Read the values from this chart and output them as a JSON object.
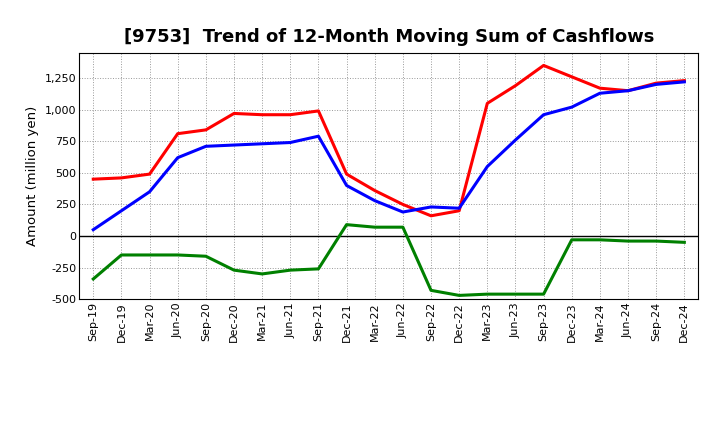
{
  "title": "[9753]  Trend of 12-Month Moving Sum of Cashflows",
  "ylabel": "Amount (million yen)",
  "x_labels": [
    "Sep-19",
    "Dec-19",
    "Mar-20",
    "Jun-20",
    "Sep-20",
    "Dec-20",
    "Mar-21",
    "Jun-21",
    "Sep-21",
    "Dec-21",
    "Mar-22",
    "Jun-22",
    "Sep-22",
    "Dec-22",
    "Mar-23",
    "Jun-23",
    "Sep-23",
    "Dec-23",
    "Mar-24",
    "Jun-24",
    "Sep-24",
    "Dec-24"
  ],
  "operating": [
    450,
    460,
    490,
    810,
    840,
    970,
    960,
    960,
    990,
    490,
    360,
    250,
    160,
    200,
    1050,
    1190,
    1350,
    1260,
    1170,
    1150,
    1210,
    1230
  ],
  "investing": [
    -340,
    -150,
    -150,
    -150,
    -160,
    -270,
    -300,
    -270,
    -260,
    90,
    70,
    70,
    -430,
    -470,
    -460,
    -460,
    -460,
    -30,
    -30,
    -40,
    -40,
    -50
  ],
  "free": [
    50,
    200,
    350,
    620,
    710,
    720,
    730,
    740,
    790,
    400,
    280,
    190,
    230,
    220,
    550,
    760,
    960,
    1020,
    1130,
    1150,
    1200,
    1220
  ],
  "operating_color": "#FF0000",
  "investing_color": "#008000",
  "free_color": "#0000FF",
  "ylim": [
    -500,
    1450
  ],
  "yticks": [
    -500,
    -250,
    0,
    250,
    500,
    750,
    1000,
    1250
  ],
  "background_color": "#ffffff",
  "grid_color": "#999999",
  "title_fontsize": 13,
  "label_fontsize": 9.5,
  "tick_fontsize": 8,
  "legend_fontsize": 9.5,
  "linewidth": 2.2
}
